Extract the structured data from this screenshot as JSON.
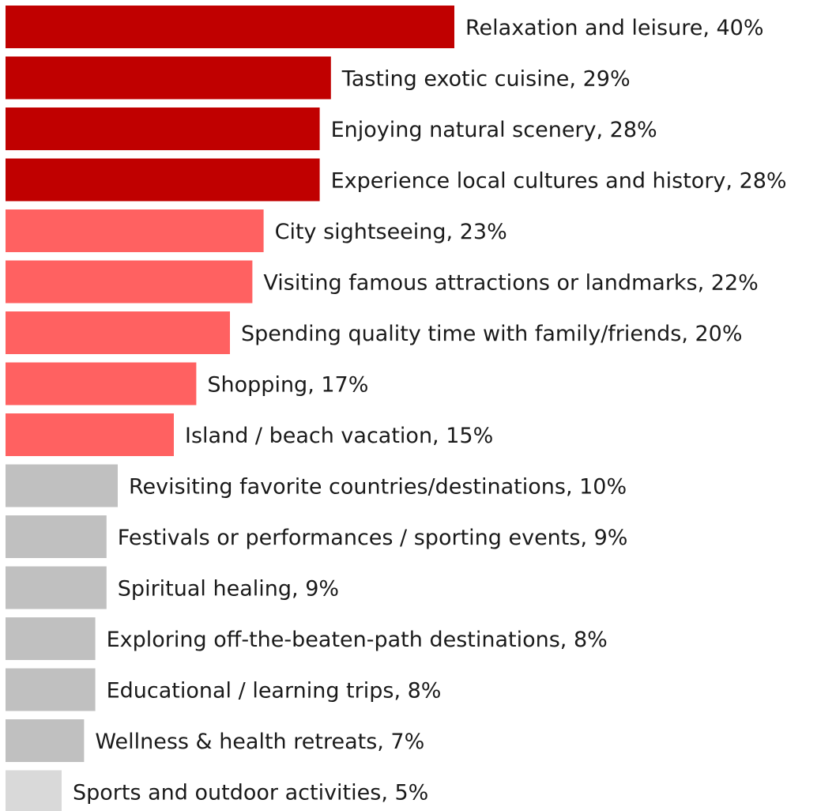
{
  "chart_data": {
    "type": "bar",
    "orientation": "horizontal",
    "title": "",
    "xlabel": "",
    "ylabel": "",
    "xlim": [
      0,
      40
    ],
    "grid": false,
    "legend": "none",
    "colors": {
      "top": "#c00000",
      "high": "#ff6161",
      "mid": "#c0c0c0",
      "low": "#d9d9d9"
    },
    "bars": [
      {
        "label": "Relaxation and leisure, 40%",
        "category": "Relaxation and leisure",
        "value": 40,
        "color_group": "top"
      },
      {
        "label": "Tasting exotic cuisine, 29%",
        "category": "Tasting exotic cuisine",
        "value": 29,
        "color_group": "top"
      },
      {
        "label": "Enjoying natural scenery, 28%",
        "category": "Enjoying natural scenery",
        "value": 28,
        "color_group": "top"
      },
      {
        "label": "Experience local cultures and history, 28%",
        "category": "Experience local cultures and history",
        "value": 28,
        "color_group": "top"
      },
      {
        "label": "City sightseeing, 23%",
        "category": "City sightseeing",
        "value": 23,
        "color_group": "high"
      },
      {
        "label": "Visiting famous attractions or landmarks, 22%",
        "category": "Visiting famous attractions or landmarks",
        "value": 22,
        "color_group": "high"
      },
      {
        "label": "Spending quality time with family/friends, 20%",
        "category": "Spending quality time with family/friends",
        "value": 20,
        "color_group": "high"
      },
      {
        "label": "Shopping, 17%",
        "category": "Shopping",
        "value": 17,
        "color_group": "high"
      },
      {
        "label": "Island / beach vacation, 15%",
        "category": "Island / beach vacation",
        "value": 15,
        "color_group": "high"
      },
      {
        "label": "Revisiting favorite countries/destinations, 10%",
        "category": "Revisiting favorite countries/destinations",
        "value": 10,
        "color_group": "mid"
      },
      {
        "label": "Festivals or performances / sporting events, 9%",
        "category": "Festivals or performances / sporting events",
        "value": 9,
        "color_group": "mid"
      },
      {
        "label": "Spiritual healing, 9%",
        "category": "Spiritual healing",
        "value": 9,
        "color_group": "mid"
      },
      {
        "label": "Exploring off-the-beaten-path destinations, 8%",
        "category": "Exploring off-the-beaten-path destinations",
        "value": 8,
        "color_group": "mid"
      },
      {
        "label": "Educational / learning trips, 8%",
        "category": "Educational / learning trips",
        "value": 8,
        "color_group": "mid"
      },
      {
        "label": "Wellness & health retreats, 7%",
        "category": "Wellness & health retreats",
        "value": 7,
        "color_group": "mid"
      },
      {
        "label": "Sports and outdoor activities, 5%",
        "category": "Sports and outdoor activities",
        "value": 5,
        "color_group": "low"
      }
    ]
  }
}
